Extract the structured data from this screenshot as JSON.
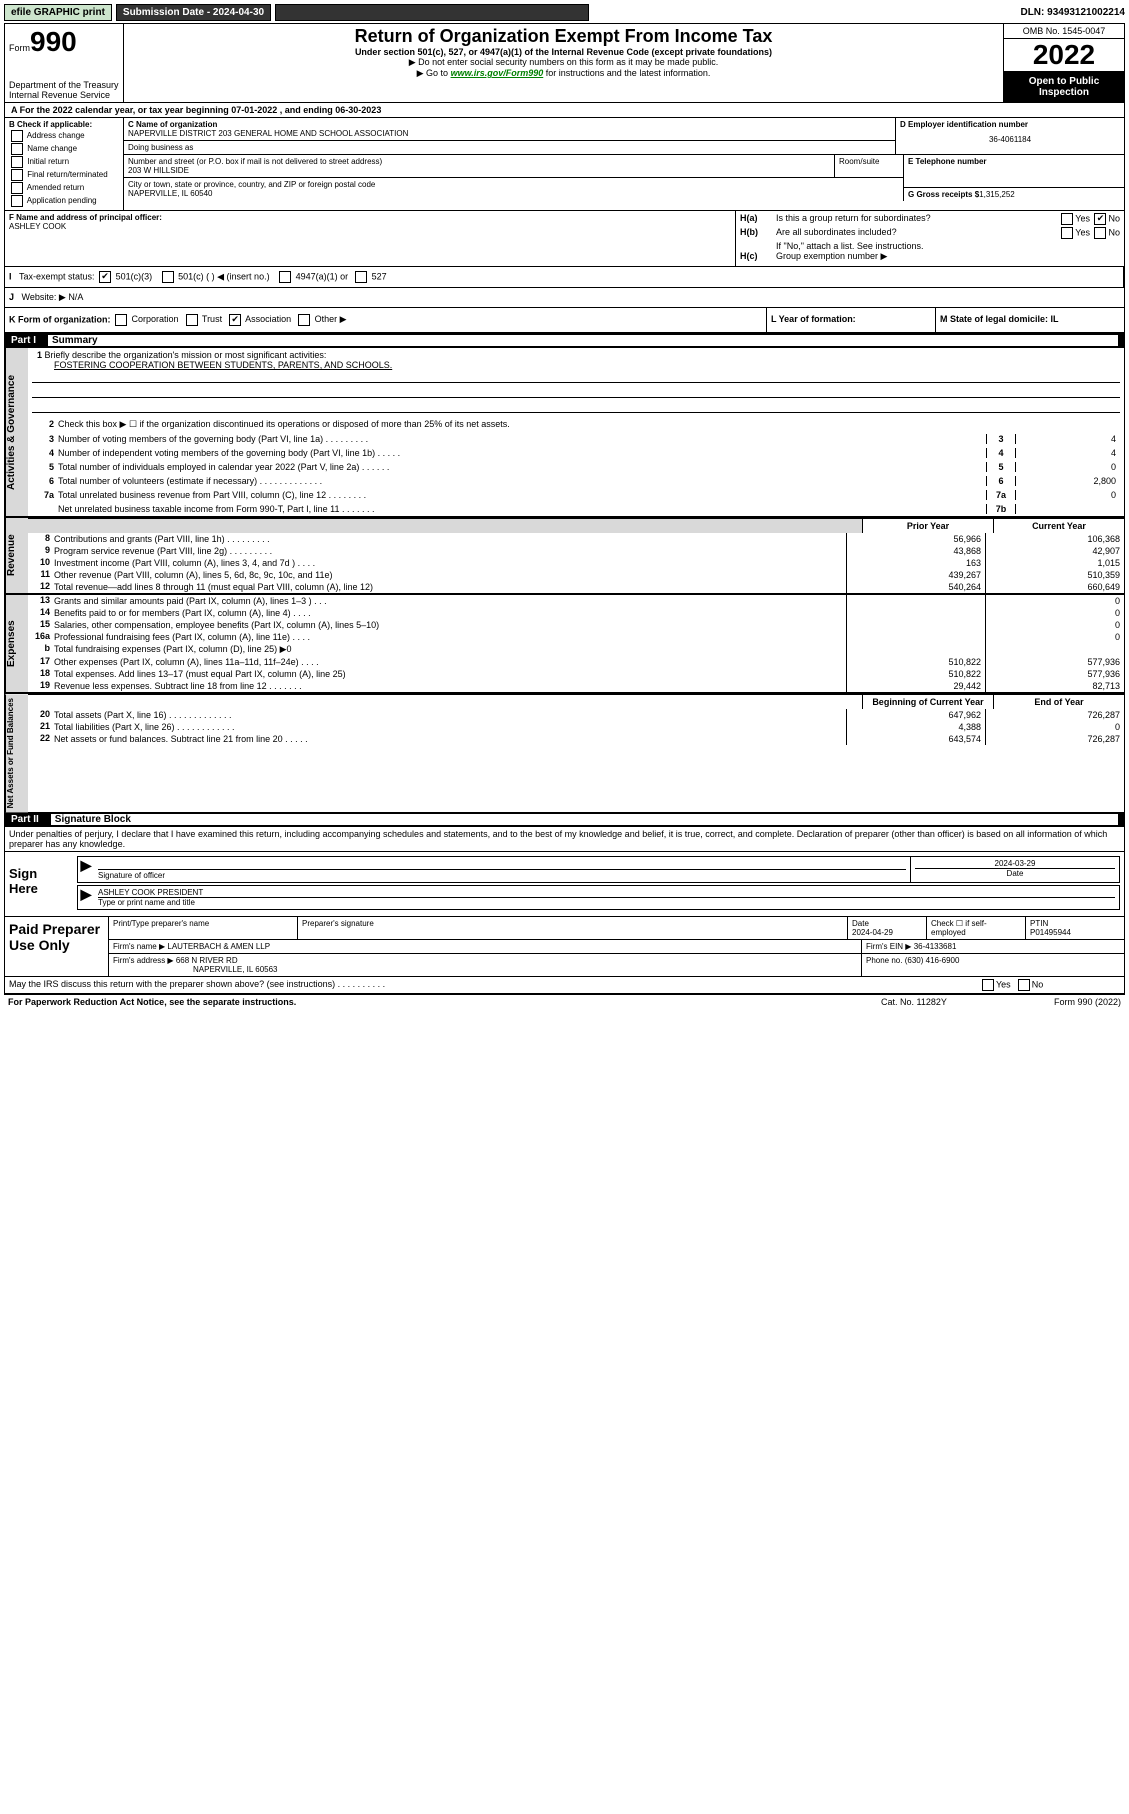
{
  "topbar": {
    "efile": "efile GRAPHIC print",
    "submission_label": "Submission Date - 2024-04-30",
    "dln": "DLN: 93493121002214"
  },
  "header": {
    "form_prefix": "Form",
    "form_num": "990",
    "dept": "Department of the Treasury Internal Revenue Service",
    "title": "Return of Organization Exempt From Income Tax",
    "sub": "Under section 501(c), 527, or 4947(a)(1) of the Internal Revenue Code (except private foundations)",
    "warn": "▶ Do not enter social security numbers on this form as it may be made public.",
    "goto_pre": "▶ Go to ",
    "goto_link": "www.irs.gov/Form990",
    "goto_post": " for instructions and the latest information.",
    "omb": "OMB No. 1545-0047",
    "year": "2022",
    "open": "Open to Public Inspection"
  },
  "row_a": "A For the 2022 calendar year, or tax year beginning 07-01-2022   , and ending 06-30-2023",
  "block_b": {
    "title": "B Check if applicable:",
    "items": [
      "Address change",
      "Name change",
      "Initial return",
      "Final return/terminated",
      "Amended return",
      "Application pending"
    ]
  },
  "block_c": {
    "label_name": "C Name of organization",
    "name": "NAPERVILLE DISTRICT 203 GENERAL HOME AND SCHOOL ASSOCIATION",
    "dba_label": "Doing business as",
    "dba": "",
    "addr_label": "Number and street (or P.O. box if mail is not delivered to street address)",
    "room_label": "Room/suite",
    "street": "203 W HILLSIDE",
    "city_label": "City or town, state or province, country, and ZIP or foreign postal code",
    "city": "NAPERVILLE, IL  60540"
  },
  "block_d": {
    "label": "D Employer identification number",
    "value": "36-4061184"
  },
  "block_e": {
    "phone_label": "E Telephone number",
    "phone": "",
    "receipts_label": "G Gross receipts $",
    "receipts": "1,315,252"
  },
  "block_f": {
    "label": "F Name and address of principal officer:",
    "name": "ASHLEY COOK"
  },
  "block_h": {
    "ha": "Is this a group return for subordinates?",
    "ha_yes": "Yes",
    "ha_no": "No",
    "ha_checked": "no",
    "hb": "Are all subordinates included?",
    "hb_yes": "Yes",
    "hb_no": "No",
    "hb_note": "If \"No,\" attach a list. See instructions.",
    "hc": "Group exemption number ▶"
  },
  "block_i": {
    "label": "Tax-exempt status:",
    "opt1": "501(c)(3)",
    "opt1_checked": true,
    "opt2": "501(c) (  ) ◀ (insert no.)",
    "opt3": "4947(a)(1) or",
    "opt4": "527"
  },
  "block_j": {
    "label": "Website: ▶",
    "value": "N/A"
  },
  "block_k": {
    "label": "K Form of organization:",
    "opts": [
      "Corporation",
      "Trust",
      "Association",
      "Other ▶"
    ],
    "checked_index": 2
  },
  "block_l": {
    "label": "L Year of formation:",
    "value": ""
  },
  "block_m": {
    "label": "M State of legal domicile: IL"
  },
  "part1": {
    "label": "Part I",
    "title": "Summary",
    "line1_label": "Briefly describe the organization's mission or most significant activities:",
    "line1_text": "FOSTERING COOPERATION BETWEEN STUDENTS, PARENTS, AND SCHOOLS.",
    "line2": "Check this box ▶ ☐  if the organization discontinued its operations or disposed of more than 25% of its net assets.",
    "governance_rows": [
      {
        "n": "3",
        "t": "Number of voting members of the governing body (Part VI, line 1a)  .   .   .   .   .   .   .   .   .",
        "box": "3",
        "v": "4"
      },
      {
        "n": "4",
        "t": "Number of independent voting members of the governing body (Part VI, line 1b)  .   .   .   .   .",
        "box": "4",
        "v": "4"
      },
      {
        "n": "5",
        "t": "Total number of individuals employed in calendar year 2022 (Part V, line 2a)  .   .   .   .   .   .",
        "box": "5",
        "v": "0"
      },
      {
        "n": "6",
        "t": "Total number of volunteers (estimate if necessary)   .   .   .   .   .   .   .   .   .   .   .   .   .",
        "box": "6",
        "v": "2,800"
      },
      {
        "n": "7a",
        "t": "Total unrelated business revenue from Part VIII, column (C), line 12  .   .   .   .   .   .   .   .",
        "box": "7a",
        "v": "0"
      },
      {
        "n": "",
        "t": "Net unrelated business taxable income from Form 990-T, Part I, line 11  .   .   .   .   .   .   .",
        "box": "7b",
        "v": ""
      }
    ],
    "col_prior": "Prior Year",
    "col_current": "Current Year",
    "revenue_rows": [
      {
        "n": "8",
        "t": "Contributions and grants (Part VIII, line 1h)   .   .   .   .   .   .   .   .   .",
        "p": "56,966",
        "c": "106,368"
      },
      {
        "n": "9",
        "t": "Program service revenue (Part VIII, line 2g)   .   .   .   .   .   .   .   .   .",
        "p": "43,868",
        "c": "42,907"
      },
      {
        "n": "10",
        "t": "Investment income (Part VIII, column (A), lines 3, 4, and 7d )   .   .   .   .",
        "p": "163",
        "c": "1,015"
      },
      {
        "n": "11",
        "t": "Other revenue (Part VIII, column (A), lines 5, 6d, 8c, 9c, 10c, and 11e)",
        "p": "439,267",
        "c": "510,359"
      },
      {
        "n": "12",
        "t": "Total revenue—add lines 8 through 11 (must equal Part VIII, column (A), line 12)",
        "p": "540,264",
        "c": "660,649"
      }
    ],
    "expense_rows": [
      {
        "n": "13",
        "t": "Grants and similar amounts paid (Part IX, column (A), lines 1–3 )   .   .   .",
        "p": "",
        "c": "0"
      },
      {
        "n": "14",
        "t": "Benefits paid to or for members (Part IX, column (A), line 4)   .   .   .   .",
        "p": "",
        "c": "0"
      },
      {
        "n": "15",
        "t": "Salaries, other compensation, employee benefits (Part IX, column (A), lines 5–10)",
        "p": "",
        "c": "0"
      },
      {
        "n": "16a",
        "t": "Professional fundraising fees (Part IX, column (A), line 11e)   .   .   .   .",
        "p": "",
        "c": "0"
      },
      {
        "n": "b",
        "t": "Total fundraising expenses (Part IX, column (D), line 25) ▶0",
        "p": "",
        "c": ""
      },
      {
        "n": "17",
        "t": "Other expenses (Part IX, column (A), lines 11a–11d, 11f–24e)   .   .   .   .",
        "p": "510,822",
        "c": "577,936"
      },
      {
        "n": "18",
        "t": "Total expenses. Add lines 13–17 (must equal Part IX, column (A), line 25)",
        "p": "510,822",
        "c": "577,936"
      },
      {
        "n": "19",
        "t": "Revenue less expenses. Subtract line 18 from line 12  .   .   .   .   .   .   .",
        "p": "29,442",
        "c": "82,713"
      }
    ],
    "col_begin": "Beginning of Current Year",
    "col_end": "End of Year",
    "netassets_rows": [
      {
        "n": "20",
        "t": "Total assets (Part X, line 16)   .   .   .   .   .   .   .   .   .   .   .   .   .",
        "p": "647,962",
        "c": "726,287"
      },
      {
        "n": "21",
        "t": "Total liabilities (Part X, line 26)   .   .   .   .   .   .   .   .   .   .   .   .",
        "p": "4,388",
        "c": "0"
      },
      {
        "n": "22",
        "t": "Net assets or fund balances. Subtract line 21 from line 20   .   .   .   .   .",
        "p": "643,574",
        "c": "726,287"
      }
    ]
  },
  "part2": {
    "label": "Part II",
    "title": "Signature Block",
    "intro": "Under penalties of perjury, I declare that I have examined this return, including accompanying schedules and statements, and to the best of my knowledge and belief, it is true, correct, and complete. Declaration of preparer (other than officer) is based on all information of which preparer has any knowledge.",
    "sign_here": "Sign Here",
    "sig_of_officer": "Signature of officer",
    "sig_date": "2024-03-29",
    "date_label": "Date",
    "officer_name": "ASHLEY COOK  PRESIDENT",
    "officer_label": "Type or print name and title",
    "paid": "Paid Preparer Use Only",
    "p_name_label": "Print/Type preparer's name",
    "p_sig_label": "Preparer's signature",
    "p_date_label": "Date",
    "p_date": "2024-04-29",
    "p_check_label": "Check ☐ if self-employed",
    "p_ptin_label": "PTIN",
    "p_ptin": "P01495944",
    "firm_name_label": "Firm's name    ▶",
    "firm_name": "LAUTERBACH & AMEN LLP",
    "firm_ein_label": "Firm's EIN ▶",
    "firm_ein": "36-4133681",
    "firm_addr_label": "Firm's address ▶",
    "firm_addr1": "668 N RIVER RD",
    "firm_addr2": "NAPERVILLE, IL  60563",
    "firm_phone_label": "Phone no.",
    "firm_phone": "(630) 416-6900"
  },
  "footer": {
    "discuss": "May the IRS discuss this return with the preparer shown above? (see instructions)   .   .   .   .   .   .   .   .   .   .",
    "yes": "Yes",
    "no": "No",
    "paperwork": "For Paperwork Reduction Act Notice, see the separate instructions.",
    "cat": "Cat. No. 11282Y",
    "form": "Form 990 (2022)"
  }
}
